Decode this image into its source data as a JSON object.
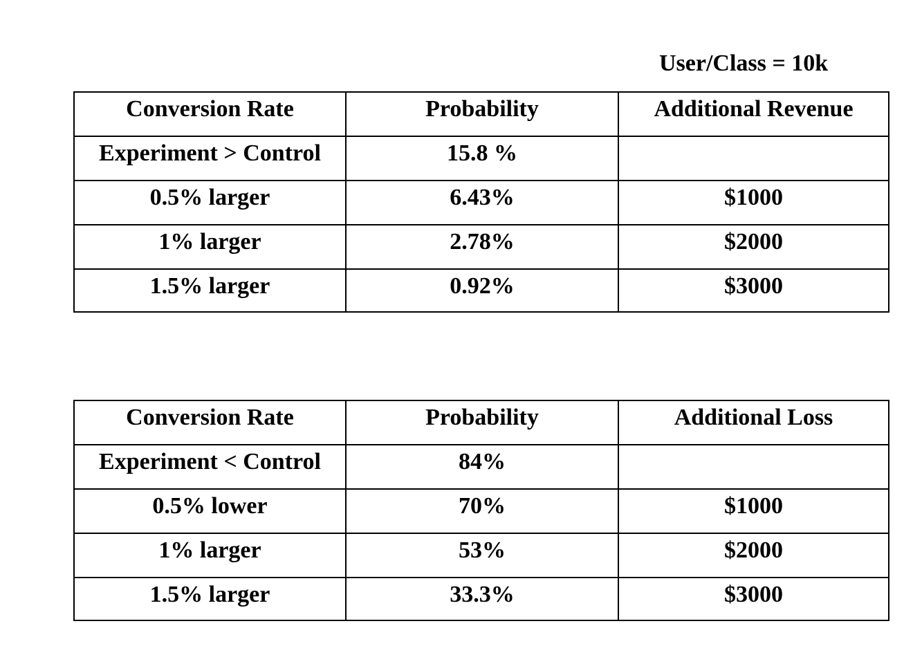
{
  "note": "User/Class = 10k",
  "table_revenue": {
    "headers": [
      "Conversion Rate",
      "Probability",
      "Additional Revenue"
    ],
    "rows": [
      [
        "Experiment > Control",
        "15.8 %",
        ""
      ],
      [
        "0.5% larger",
        "6.43%",
        "$1000"
      ],
      [
        "1% larger",
        "2.78%",
        "$2000"
      ],
      [
        "1.5% larger",
        "0.92%",
        "$3000"
      ]
    ]
  },
  "table_loss": {
    "headers": [
      "Conversion Rate",
      "Probability",
      "Additional Loss"
    ],
    "rows": [
      [
        "Experiment < Control",
        "84%",
        ""
      ],
      [
        "0.5% lower",
        "70%",
        "$1000"
      ],
      [
        "1% larger",
        "53%",
        "$2000"
      ],
      [
        "1.5% larger",
        "33.3%",
        "$3000"
      ]
    ]
  }
}
